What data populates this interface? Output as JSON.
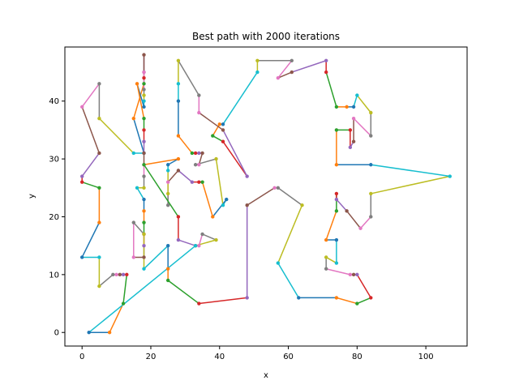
{
  "chart_data": {
    "type": "line",
    "title": "Best path with 2000 iterations",
    "xlabel": "x",
    "ylabel": "y",
    "xlim": [
      -5,
      112
    ],
    "ylim": [
      -2.35,
      49.35
    ],
    "xticks": [
      0,
      20,
      40,
      60,
      80,
      100
    ],
    "yticks": [
      0,
      10,
      20,
      30,
      40
    ],
    "grid": false,
    "legend": "none",
    "colors": [
      "#1f77b4",
      "#ff7f0e",
      "#2ca02c",
      "#d62728",
      "#9467bd",
      "#8c564b",
      "#e377c2",
      "#7f7f7f",
      "#bcbd22",
      "#17becf"
    ],
    "path": [
      [
        2,
        0
      ],
      [
        8,
        0
      ],
      [
        12,
        5
      ],
      [
        13,
        10
      ],
      [
        12,
        10
      ],
      [
        11,
        10
      ],
      [
        10,
        10
      ],
      [
        9,
        10
      ],
      [
        5,
        8
      ],
      [
        5,
        13
      ],
      [
        0,
        13
      ],
      [
        5,
        19
      ],
      [
        5,
        25
      ],
      [
        0,
        26
      ],
      [
        0,
        27
      ],
      [
        5,
        31
      ],
      [
        0,
        39
      ],
      [
        5,
        43
      ],
      [
        5,
        37
      ],
      [
        15,
        31
      ],
      [
        18,
        31
      ],
      [
        15,
        37
      ],
      [
        18,
        43
      ],
      [
        18,
        44
      ],
      [
        18,
        45
      ],
      [
        18,
        48
      ],
      [
        18,
        45
      ],
      [
        18,
        42
      ],
      [
        18,
        41
      ],
      [
        18,
        40
      ],
      [
        18,
        39
      ],
      [
        16,
        43
      ],
      [
        18,
        37
      ],
      [
        18,
        35
      ],
      [
        18,
        33
      ],
      [
        18,
        31
      ],
      [
        18,
        29
      ],
      [
        18,
        27
      ],
      [
        18,
        25
      ],
      [
        16,
        25
      ],
      [
        18,
        23
      ],
      [
        18,
        21
      ],
      [
        18,
        19
      ],
      [
        18,
        17
      ],
      [
        18,
        15
      ],
      [
        18,
        13
      ],
      [
        15,
        13
      ],
      [
        15,
        19
      ],
      [
        18,
        17
      ],
      [
        18,
        11
      ],
      [
        25,
        15
      ],
      [
        25,
        11
      ],
      [
        25,
        9
      ],
      [
        34,
        5
      ],
      [
        48,
        6
      ],
      [
        48,
        22
      ],
      [
        56,
        25
      ],
      [
        57,
        25
      ],
      [
        64,
        22
      ],
      [
        57,
        12
      ],
      [
        63,
        6
      ],
      [
        74,
        6
      ],
      [
        80,
        5
      ],
      [
        84,
        6
      ],
      [
        80,
        10
      ],
      [
        79,
        10
      ],
      [
        78,
        10
      ],
      [
        71,
        11
      ],
      [
        71,
        13
      ],
      [
        74,
        12
      ],
      [
        74,
        16
      ],
      [
        71,
        16
      ],
      [
        74,
        21
      ],
      [
        74,
        24
      ],
      [
        74,
        23
      ],
      [
        77,
        21
      ],
      [
        81,
        18
      ],
      [
        84,
        20
      ],
      [
        84,
        24
      ],
      [
        107,
        27
      ],
      [
        84,
        29
      ],
      [
        74,
        29
      ],
      [
        74,
        35
      ],
      [
        78,
        35
      ],
      [
        78,
        32
      ],
      [
        79,
        33
      ],
      [
        79,
        37
      ],
      [
        84,
        34
      ],
      [
        84,
        38
      ],
      [
        80,
        41
      ],
      [
        79,
        39
      ],
      [
        77,
        39
      ],
      [
        74,
        39
      ],
      [
        71,
        45
      ],
      [
        71,
        47
      ],
      [
        61,
        45
      ],
      [
        57,
        44
      ],
      [
        61,
        47
      ],
      [
        51,
        47
      ],
      [
        51,
        45
      ],
      [
        41,
        36
      ],
      [
        40,
        36
      ],
      [
        38,
        34
      ],
      [
        41,
        33
      ],
      [
        48,
        27
      ],
      [
        41,
        35
      ],
      [
        34,
        38
      ],
      [
        34,
        41
      ],
      [
        28,
        47
      ],
      [
        28,
        43
      ],
      [
        28,
        40
      ],
      [
        28,
        34
      ],
      [
        32,
        31
      ],
      [
        33,
        31
      ],
      [
        34,
        31
      ],
      [
        35,
        31
      ],
      [
        34,
        29
      ],
      [
        33,
        29
      ],
      [
        39,
        30
      ],
      [
        41,
        22
      ],
      [
        42,
        23
      ],
      [
        38,
        20
      ],
      [
        35,
        26
      ],
      [
        34,
        26
      ],
      [
        32,
        26
      ],
      [
        28,
        28
      ],
      [
        25,
        26
      ],
      [
        25,
        22
      ],
      [
        25,
        24
      ],
      [
        25,
        28
      ],
      [
        25,
        29
      ],
      [
        28,
        30
      ],
      [
        18,
        29
      ],
      [
        28,
        20
      ],
      [
        28,
        16
      ],
      [
        33,
        15
      ],
      [
        34,
        15
      ],
      [
        35,
        17
      ],
      [
        39,
        16
      ],
      [
        33,
        15
      ],
      [
        2,
        0
      ]
    ]
  }
}
